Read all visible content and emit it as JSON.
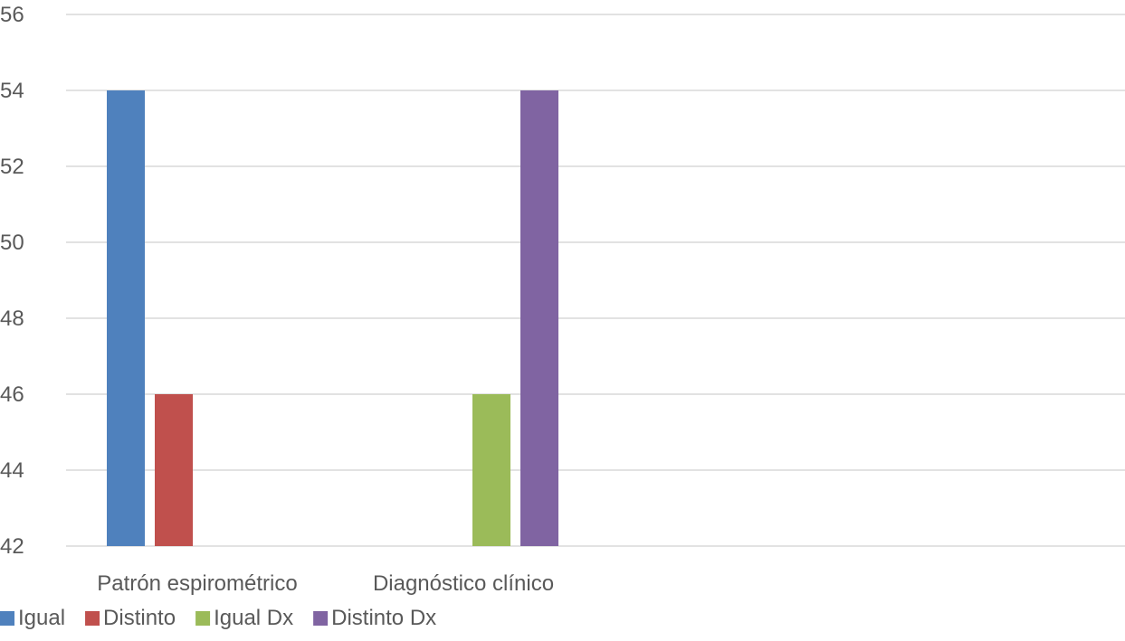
{
  "chart_data": {
    "type": "bar",
    "title": "",
    "xlabel": "",
    "ylabel": "",
    "categories": [
      "Patrón espirométrico",
      "Diagnóstico clínico"
    ],
    "series": [
      {
        "name": "Igual",
        "color": "#4f81bd",
        "values": [
          54,
          null
        ]
      },
      {
        "name": "Distinto",
        "color": "#c0504d",
        "values": [
          46,
          null
        ]
      },
      {
        "name": "Igual Dx",
        "color": "#9bbb59",
        "values": [
          null,
          46
        ]
      },
      {
        "name": "Distinto Dx",
        "color": "#8064a2",
        "values": [
          null,
          54
        ]
      }
    ],
    "ylim": [
      42,
      56
    ],
    "yticks": [
      42,
      44,
      46,
      48,
      50,
      52,
      54,
      56
    ],
    "grid": true,
    "legend_position": "bottom-left"
  }
}
